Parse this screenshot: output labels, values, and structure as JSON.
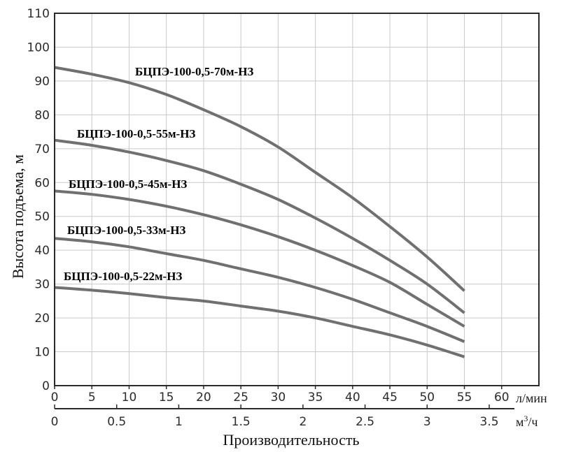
{
  "chart_data": {
    "type": "line",
    "xlabel": "Производительность",
    "ylabel": "Высота подъема, м",
    "x_unit_primary": "л/мин",
    "x_unit_secondary": "м³/ч",
    "x_unit_secondary_base": "м",
    "x_unit_secondary_exp": "3",
    "x_unit_secondary_tail": "/ч",
    "xlim": [
      0,
      65
    ],
    "ylim": [
      0,
      110
    ],
    "x_ticks": [
      "0",
      "5",
      "10",
      "15",
      "20",
      "25",
      "30",
      "35",
      "40",
      "45",
      "50",
      "55",
      "60"
    ],
    "x2_ticks": [
      "0",
      "0.5",
      "1",
      "1.5",
      "2",
      "2.5",
      "3",
      "3.5"
    ],
    "y_ticks": [
      "0",
      "10",
      "20",
      "30",
      "40",
      "50",
      "60",
      "70",
      "80",
      "90",
      "100",
      "110"
    ],
    "grid": true,
    "line_color": "#707070",
    "series": [
      {
        "name": "БЦПЭ-100-0,5-70м-НЗ",
        "x": [
          0,
          5,
          10,
          15,
          20,
          25,
          30,
          35,
          40,
          45,
          50,
          55
        ],
        "y": [
          94,
          92,
          89.5,
          86,
          81.5,
          76.5,
          70.5,
          63,
          55.5,
          47,
          38,
          28
        ]
      },
      {
        "name": "БЦПЭ-100-0,5-55м-НЗ",
        "x": [
          0,
          5,
          10,
          15,
          20,
          25,
          30,
          35,
          40,
          45,
          50,
          55
        ],
        "y": [
          72.5,
          71,
          69,
          66.5,
          63.5,
          59.5,
          55,
          49.5,
          43.5,
          37,
          30,
          21.5
        ]
      },
      {
        "name": "БЦПЭ-100-0,5-45м-НЗ",
        "x": [
          0,
          5,
          10,
          15,
          20,
          25,
          30,
          35,
          40,
          45,
          50,
          55
        ],
        "y": [
          57.5,
          56.5,
          55,
          53,
          50.5,
          47.5,
          44,
          40,
          35.5,
          30.5,
          24,
          17.5
        ]
      },
      {
        "name": "БЦПЭ-100-0,5-33м-НЗ",
        "x": [
          0,
          5,
          10,
          15,
          20,
          25,
          30,
          35,
          40,
          45,
          50,
          55
        ],
        "y": [
          43.5,
          42.5,
          41,
          39,
          37,
          34.5,
          32,
          29,
          25.5,
          21.5,
          17.5,
          13
        ]
      },
      {
        "name": "БЦПЭ-100-0,5-22м-НЗ",
        "x": [
          0,
          5,
          10,
          15,
          20,
          25,
          30,
          35,
          40,
          45,
          50,
          55
        ],
        "y": [
          29,
          28.2,
          27.2,
          26,
          25,
          23.5,
          22,
          20,
          17.5,
          15,
          12,
          8.5
        ]
      }
    ]
  }
}
